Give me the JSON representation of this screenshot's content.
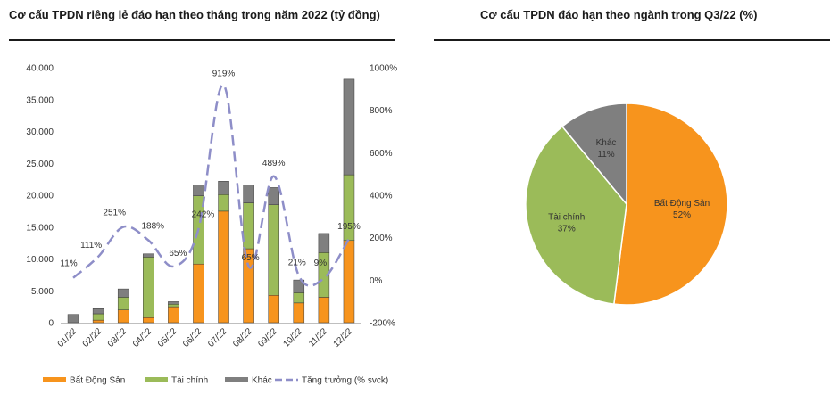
{
  "titles": {
    "left": "Cơ cấu TPDN riêng lẻ đáo hạn theo tháng trong năm 2022 (tỷ đồng)",
    "right": "Cơ cấu TPDN đáo hạn theo ngành trong Q3/22 (%)"
  },
  "chart_data": [
    {
      "type": "bar",
      "stacked": true,
      "categories": [
        "01/22",
        "02/22",
        "03/22",
        "04/22",
        "05/22",
        "06/22",
        "07/22",
        "08/22",
        "09/22",
        "10/22",
        "11/22",
        "12/22"
      ],
      "y_ticks": [
        "0",
        "5.000",
        "10.000",
        "15.000",
        "20.000",
        "25.000",
        "30.000",
        "35.000",
        "40.000"
      ],
      "y2_ticks": [
        "-200%",
        "0%",
        "200%",
        "400%",
        "600%",
        "800%",
        "1000%"
      ],
      "ylim": [
        0,
        40000
      ],
      "y2lim": [
        -200,
        1000
      ],
      "grid": false,
      "legend_position": "bottom",
      "series": [
        {
          "name": "Bất Động Sản",
          "color": "#f7941d",
          "values": [
            0,
            400,
            2000,
            800,
            2500,
            9200,
            17500,
            11600,
            4300,
            3100,
            4000,
            12900
          ]
        },
        {
          "name": "Tài chính",
          "color": "#9bbb59",
          "values": [
            0,
            1000,
            2000,
            9500,
            400,
            10700,
            2600,
            7200,
            14200,
            1600,
            7000,
            10300
          ]
        },
        {
          "name": "Khác",
          "color": "#7f7f7f",
          "values": [
            1300,
            800,
            1300,
            500,
            400,
            1700,
            2100,
            2800,
            2700,
            2000,
            3000,
            15000
          ]
        },
        {
          "name": "Tăng trưởng (% svck)",
          "type": "line",
          "axis": "secondary",
          "color": "#8e8ec8",
          "dashed": true,
          "values": [
            11,
            111,
            251,
            188,
            65,
            242,
            919,
            65,
            489,
            21,
            9,
            195
          ]
        }
      ],
      "data_labels": [
        "11%",
        "111%",
        "251%",
        "188%",
        "65%",
        "242%",
        "919%",
        "65%",
        "489%",
        "21%",
        "9%",
        "195%"
      ]
    },
    {
      "type": "pie",
      "categories": [
        "Bất Động Sản",
        "Tài chính",
        "Khác"
      ],
      "values": [
        52,
        37,
        11
      ],
      "labels": [
        "52%",
        "37%",
        "11%"
      ],
      "colors": [
        "#f7941d",
        "#9bbb59",
        "#7f7f7f"
      ]
    }
  ]
}
